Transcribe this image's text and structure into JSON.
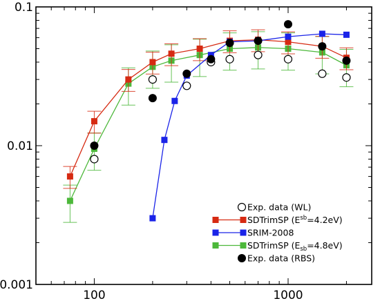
{
  "chart_data": {
    "type": "line",
    "x_scale": "log",
    "y_scale": "log",
    "xlim": [
      50,
      2700
    ],
    "ylim": [
      0.001,
      0.1
    ],
    "x_ticks": [
      {
        "value": 100,
        "label": "100"
      },
      {
        "value": 1000,
        "label": "1000"
      }
    ],
    "y_ticks": [
      {
        "value": 0.001,
        "label": "0.001"
      },
      {
        "value": 0.01,
        "label": "0.01"
      },
      {
        "value": 0.1,
        "label": "0.1"
      }
    ],
    "grid": false,
    "legend_position": "bottom-right",
    "series": [
      {
        "name": "SDTrimSP (E^sb=4.2eV)",
        "legend_main": "SDTrimSP (E",
        "legend_sup": "sb",
        "legend_tail": "=4.2eV)",
        "marker": "square",
        "color": "#d62a12",
        "connect": true,
        "x": [
          75,
          100,
          150,
          200,
          250,
          350,
          500,
          700,
          1000,
          1500,
          2000
        ],
        "y": [
          0.006,
          0.015,
          0.03,
          0.04,
          0.046,
          0.05,
          0.057,
          0.058,
          0.056,
          0.052,
          0.043
        ],
        "err_rel": 0.18
      },
      {
        "name": "SRIM-2008",
        "legend_main": "SRIM-2008",
        "marker": "square",
        "color": "#1a23e8",
        "connect": true,
        "x": [
          200,
          230,
          260,
          300,
          400,
          500,
          700,
          1000,
          1500,
          2000
        ],
        "y": [
          0.003,
          0.011,
          0.021,
          0.032,
          0.045,
          0.056,
          0.057,
          0.061,
          0.064,
          0.063
        ]
      },
      {
        "name": "SDTrimSP (E_sb=4.8eV)",
        "legend_main": "SDTrimSP (E",
        "legend_sub": "sb",
        "legend_tail": "=4.8eV)",
        "marker": "square",
        "color": "#4cb83a",
        "connect": true,
        "x": [
          75,
          100,
          150,
          200,
          250,
          350,
          500,
          700,
          1000,
          1500,
          2000
        ],
        "y": [
          0.004,
          0.0095,
          0.028,
          0.037,
          0.041,
          0.045,
          0.05,
          0.051,
          0.05,
          0.047,
          0.038
        ],
        "err_rel": 0.3
      },
      {
        "name": "Exp. data (WL)",
        "legend_main": "Exp. data (WL)",
        "marker": "open-circle",
        "color": "#000000",
        "connect": false,
        "x": [
          100,
          200,
          300,
          400,
          500,
          700,
          1000,
          1500,
          2000
        ],
        "y": [
          0.008,
          0.03,
          0.027,
          0.04,
          0.042,
          0.045,
          0.042,
          0.033,
          0.031
        ]
      },
      {
        "name": "Exp. data (RBS)",
        "legend_main": "Exp. data (RBS)",
        "marker": "filled-circle",
        "color": "#000000",
        "connect": false,
        "x": [
          100,
          200,
          300,
          400,
          500,
          700,
          1000,
          1500,
          2000
        ],
        "y": [
          0.01,
          0.022,
          0.033,
          0.042,
          0.055,
          0.057,
          0.075,
          0.052,
          0.041
        ]
      }
    ],
    "legend_order": [
      "Exp. data (WL)",
      "SDTrimSP (E^sb=4.2eV)",
      "SRIM-2008",
      "SDTrimSP (E_sb=4.8eV)",
      "Exp. data (RBS)"
    ]
  }
}
